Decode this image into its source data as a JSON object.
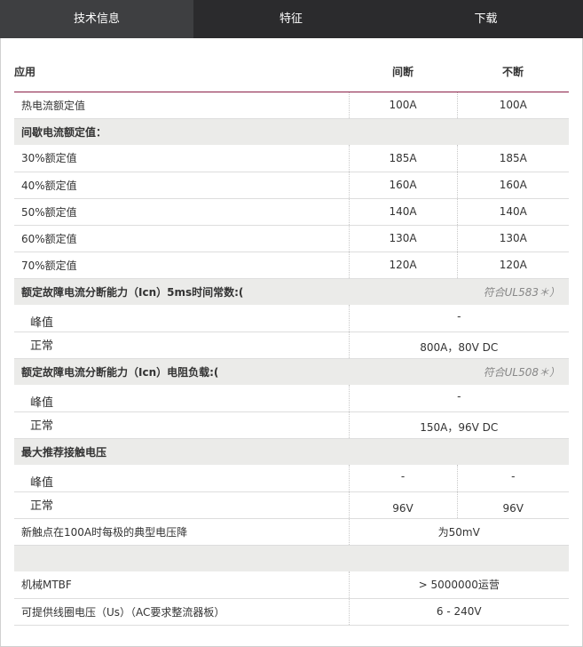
{
  "tabs": [
    {
      "label": "技术信息",
      "active": true
    },
    {
      "label": "特征",
      "active": false
    },
    {
      "label": "下载",
      "active": false
    }
  ],
  "table": {
    "headers": [
      "应用",
      "间断",
      "不断"
    ],
    "rows": [
      {
        "type": "row",
        "label": "热电流额定值",
        "values": [
          "100A",
          "100A"
        ]
      },
      {
        "type": "sec",
        "label": "间歇电流额定值："
      },
      {
        "type": "row",
        "label": "30%额定值",
        "values": [
          "185A",
          "185A"
        ]
      },
      {
        "type": "row",
        "label": "40%额定值",
        "values": [
          "160A",
          "160A"
        ]
      },
      {
        "type": "row",
        "label": "50%额定值",
        "values": [
          "140A",
          "140A"
        ]
      },
      {
        "type": "row",
        "label": "60%额定值",
        "values": [
          "130A",
          "130A"
        ]
      },
      {
        "type": "row",
        "label": "70%额定值",
        "values": [
          "120A",
          "120A"
        ]
      },
      {
        "type": "sec",
        "label": "额定故障电流分断能力（Icn）5ms时间常数:(",
        "note": "符合UL583＊）"
      },
      {
        "type": "peak",
        "label": "峰值",
        "merged": "-"
      },
      {
        "type": "norm",
        "label": "正常",
        "merged": "800A，80V DC"
      },
      {
        "type": "sec",
        "label": "额定故障电流分断能力（Icn）电阻负载:(",
        "note": "符合UL508＊）"
      },
      {
        "type": "peak",
        "label": "峰值",
        "merged": "-"
      },
      {
        "type": "norm",
        "label": "正常",
        "merged": "150A，96V DC"
      },
      {
        "type": "sec",
        "label": "最大推荐接触电压"
      },
      {
        "type": "peak",
        "label": "峰值",
        "values": [
          "-",
          "-"
        ]
      },
      {
        "type": "norm",
        "label": "正常",
        "values": [
          "96V",
          "96V"
        ]
      },
      {
        "type": "row",
        "label": "新触点在100A时每极的典型电压降",
        "merged": "为50mV"
      },
      {
        "type": "sec",
        "label": ""
      },
      {
        "type": "row",
        "label": "机械MTBF",
        "merged": "> 5000000运营"
      },
      {
        "type": "row",
        "label": "可提供线圈电压（Us）（AC要求整流器板）",
        "merged": "6 - 240V"
      }
    ]
  }
}
